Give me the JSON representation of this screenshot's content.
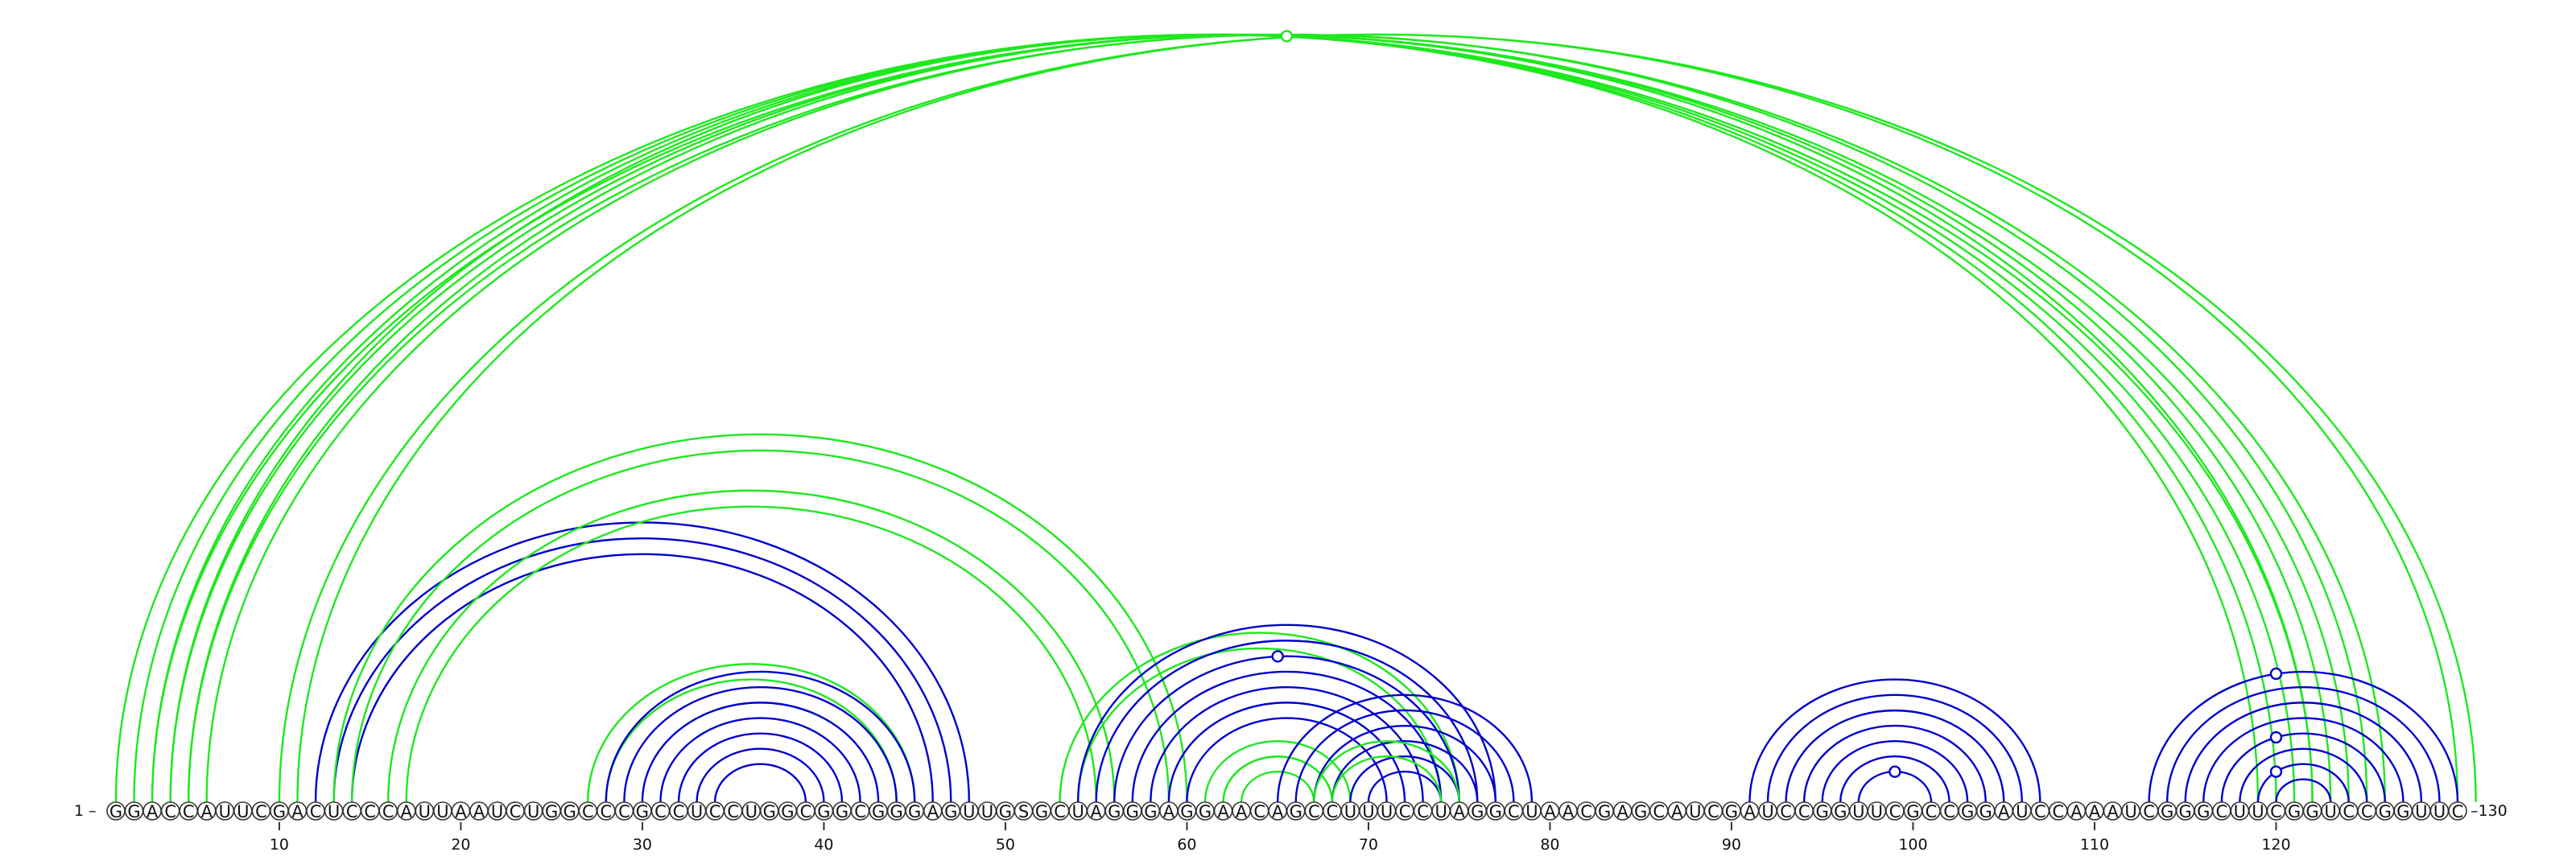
{
  "sequence": "GGACCAUUCGACUCCCAUUAAUCUGGCCCGCCUCCUGGCGGCGGGAGUUGSGCUAGGGAGGAACAGCCUUUCCUAGGCUAACGAGCAUCGAUCCGGUUCGCCGGAUCCAAAUCGGGCUUCGGUCCGGUUC",
  "start_label": "1 –",
  "end_label": "–130",
  "ticks": [
    10,
    20,
    30,
    40,
    50,
    60,
    70,
    80,
    90,
    100,
    110,
    120
  ],
  "colors": {
    "blue": "#0000cc",
    "green": "#1ee81e"
  },
  "arc_groups": [
    {
      "color": "green",
      "i": 1,
      "j": 122,
      "n": 4,
      "step": 1
    },
    {
      "color": "green",
      "i": 3,
      "j": 124,
      "n": 3,
      "step": 1
    },
    {
      "color": "green",
      "i": 5,
      "j": 126,
      "n": 2,
      "step": 1
    },
    {
      "color": "green",
      "i": 10,
      "j": 131,
      "n": 2,
      "step": 1
    },
    {
      "color": "blue",
      "i": 12,
      "j": 48,
      "n": 3,
      "step": 1
    },
    {
      "color": "green",
      "i": 13,
      "j": 60,
      "n": 2,
      "step": 1
    },
    {
      "color": "green",
      "i": 16,
      "j": 56,
      "n": 2,
      "step": 1
    },
    {
      "color": "green",
      "i": 27,
      "j": 45,
      "n": 2,
      "step": 1
    },
    {
      "color": "blue",
      "i": 28,
      "j": 45,
      "n": 7,
      "step": 1
    },
    {
      "color": "green",
      "i": 53,
      "j": 75,
      "n": 2,
      "step": 1
    },
    {
      "color": "blue",
      "i": 54,
      "j": 77,
      "n": 7,
      "step": 1
    },
    {
      "color": "green",
      "i": 61,
      "j": 69,
      "n": 2,
      "step": 1
    },
    {
      "color": "green",
      "i": 62,
      "j": 68,
      "n": 2,
      "step": 1
    },
    {
      "color": "blue",
      "i": 65,
      "j": 79,
      "n": 6,
      "step": 1
    },
    {
      "color": "green",
      "i": 67,
      "j": 75,
      "n": 2,
      "step": 1
    },
    {
      "color": "blue",
      "i": 91,
      "j": 107,
      "n": 7,
      "step": 1
    },
    {
      "color": "blue",
      "i": 113,
      "j": 130,
      "n": 8,
      "step": 1
    }
  ],
  "markers": [
    {
      "color": "green",
      "pos": 65.5,
      "group": 0
    },
    {
      "color": "blue",
      "pos": 65,
      "group": 10,
      "ring": 2
    },
    {
      "color": "blue",
      "pos": 99,
      "group": 15,
      "ring": 6
    },
    {
      "color": "blue",
      "pos": 120,
      "group": 16,
      "ring": 0
    },
    {
      "color": "blue",
      "pos": 120,
      "group": 16,
      "ring": 4
    },
    {
      "color": "blue",
      "pos": 120,
      "group": 16,
      "ring": 6
    }
  ]
}
